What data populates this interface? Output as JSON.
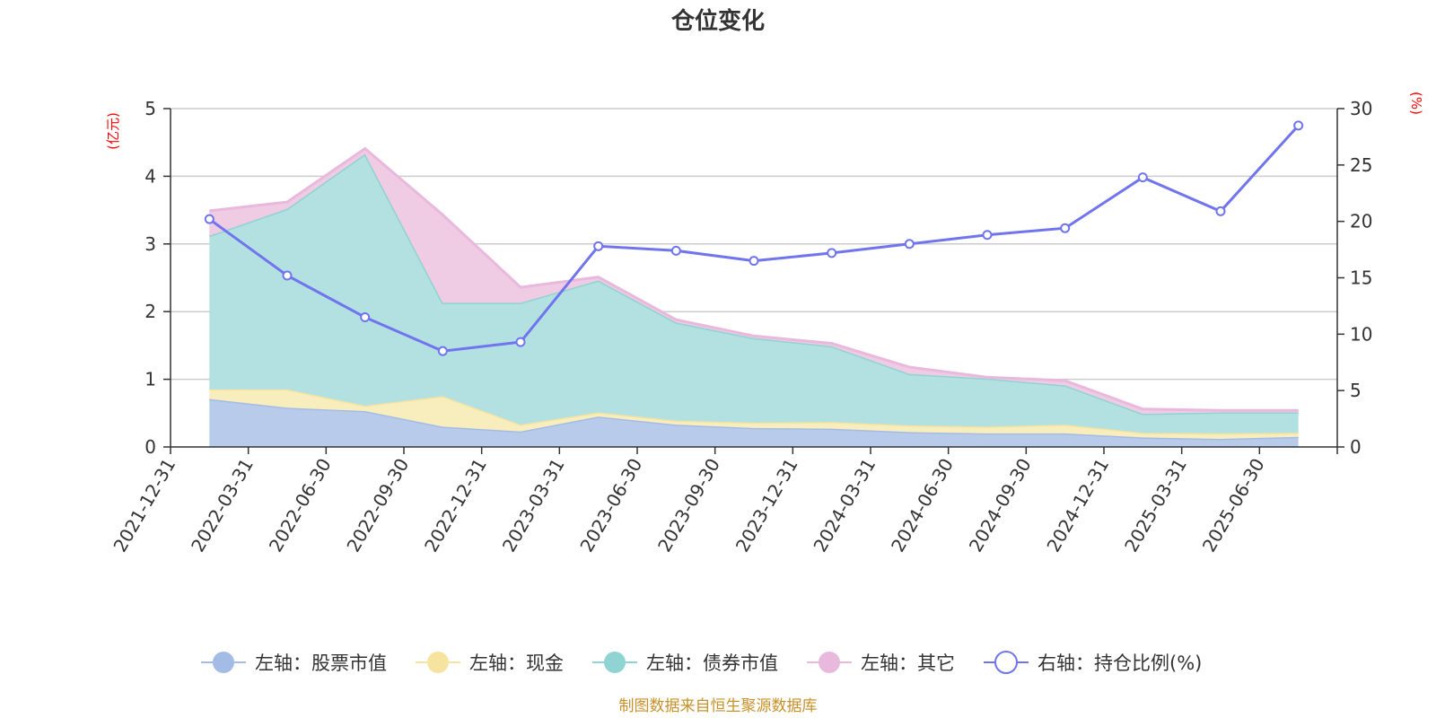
{
  "chart_data": {
    "type": "area",
    "title": "仓位变化",
    "left_axis": {
      "unit": "(亿元)",
      "ylim": [
        0,
        5
      ],
      "ticks": [
        "0",
        "1",
        "2",
        "3",
        "4",
        "5"
      ]
    },
    "right_axis": {
      "unit": "(%)",
      "ylim": [
        0,
        30
      ],
      "ticks": [
        "0",
        "5",
        "10",
        "15",
        "20",
        "25",
        "30"
      ]
    },
    "categories": [
      "2021-12-31",
      "2022-03-31",
      "2022-06-30",
      "2022-09-30",
      "2022-12-31",
      "2023-03-31",
      "2023-06-30",
      "2023-09-30",
      "2023-12-31",
      "2024-03-31",
      "2024-06-30",
      "2024-09-30",
      "2024-12-31",
      "2025-03-31",
      "2025-06-30"
    ],
    "series": [
      {
        "name": "左轴：股票市值",
        "axis": "left",
        "kind": "stacked-area",
        "color": "#a3bce6",
        "fill": "#b9cbea",
        "values": [
          0.71,
          0.58,
          0.53,
          0.3,
          0.23,
          0.45,
          0.33,
          0.28,
          0.27,
          0.22,
          0.2,
          0.2,
          0.14,
          0.12,
          0.15
        ]
      },
      {
        "name": "左轴：现金",
        "axis": "left",
        "kind": "stacked-area",
        "color": "#f7e3a0",
        "fill": "#f8edbd",
        "values": [
          0.14,
          0.27,
          0.08,
          0.45,
          0.1,
          0.06,
          0.06,
          0.08,
          0.1,
          0.1,
          0.1,
          0.13,
          0.07,
          0.08,
          0.06
        ]
      },
      {
        "name": "左轴：债券市值",
        "axis": "left",
        "kind": "stacked-area",
        "color": "#8fd3d3",
        "fill": "#b3e1e1",
        "values": [
          2.27,
          2.67,
          3.72,
          1.38,
          1.8,
          1.95,
          1.45,
          1.25,
          1.12,
          0.76,
          0.71,
          0.58,
          0.28,
          0.31,
          0.3
        ]
      },
      {
        "name": "左轴：其它",
        "axis": "left",
        "kind": "stacked-area",
        "color": "#e8b9dc",
        "fill": "#efcbe4",
        "values": [
          0.37,
          0.1,
          0.08,
          1.3,
          0.23,
          0.05,
          0.04,
          0.03,
          0.04,
          0.1,
          0.02,
          0.07,
          0.07,
          0.03,
          0.03
        ]
      },
      {
        "name": "右轴：持仓比例(%)",
        "axis": "right",
        "kind": "line",
        "color": "#7075ee",
        "values": [
          20.2,
          15.2,
          11.5,
          8.5,
          9.3,
          17.8,
          17.4,
          16.5,
          17.2,
          18.0,
          18.8,
          19.4,
          23.9,
          20.9,
          28.5
        ]
      }
    ],
    "grid": true,
    "legend_position": "bottom"
  },
  "footer": "制图数据来自恒生聚源数据库"
}
